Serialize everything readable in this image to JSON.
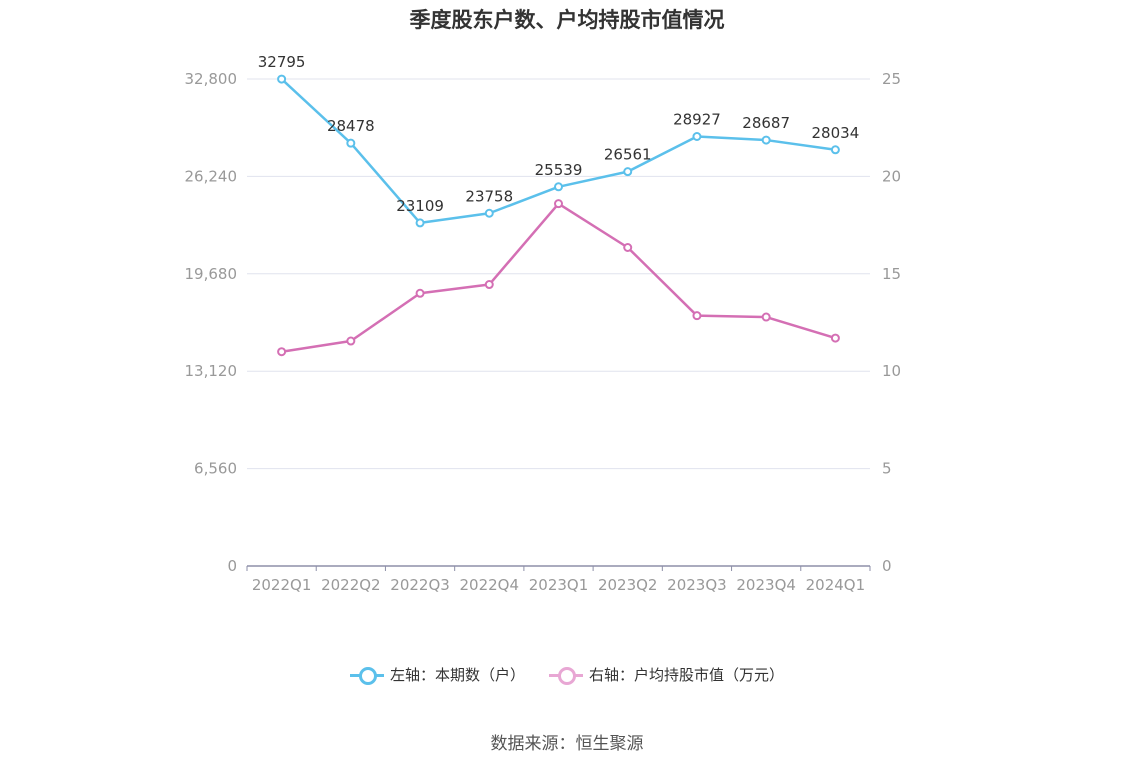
{
  "title": "季度股东户数、户均持股市值情况",
  "source": "数据来源：恒生聚源",
  "chart_data": {
    "type": "line",
    "categories": [
      "2022Q1",
      "2022Q2",
      "2022Q3",
      "2022Q4",
      "2023Q1",
      "2023Q2",
      "2023Q3",
      "2023Q4",
      "2024Q1"
    ],
    "left_axis": {
      "min": 0,
      "max": 32800,
      "ticks": [
        0,
        6560,
        13120,
        19680,
        26240,
        32800
      ],
      "tick_labels": [
        "0",
        "6,560",
        "13,120",
        "19,680",
        "26,240",
        "32,800"
      ]
    },
    "right_axis": {
      "min": 0,
      "max": 25,
      "ticks": [
        0,
        5,
        10,
        15,
        20,
        25
      ],
      "tick_labels": [
        "0",
        "5",
        "10",
        "15",
        "20",
        "25"
      ]
    },
    "grid": true,
    "legend_position": "bottom",
    "series": [
      {
        "name": "左轴：本期数（户）",
        "axis": "left",
        "color": "#5bc0eb",
        "values": [
          32795,
          28478,
          23109,
          23758,
          25539,
          26561,
          28927,
          28687,
          28034
        ],
        "labels": [
          "32795",
          "28478",
          "23109",
          "23758",
          "25539",
          "26561",
          "28927",
          "28687",
          "28034"
        ]
      },
      {
        "name": "右轴：户均持股市值（万元）",
        "axis": "right",
        "color": "#d46fb4",
        "values": [
          11.0,
          11.55,
          14.0,
          14.45,
          18.6,
          16.35,
          12.85,
          12.78,
          11.7
        ]
      }
    ]
  },
  "legend": {
    "items": [
      {
        "label": "左轴：本期数（户）",
        "color": "#5bc0eb"
      },
      {
        "label": "右轴：户均持股市值（万元）",
        "color": "#e8a7d4"
      }
    ]
  }
}
